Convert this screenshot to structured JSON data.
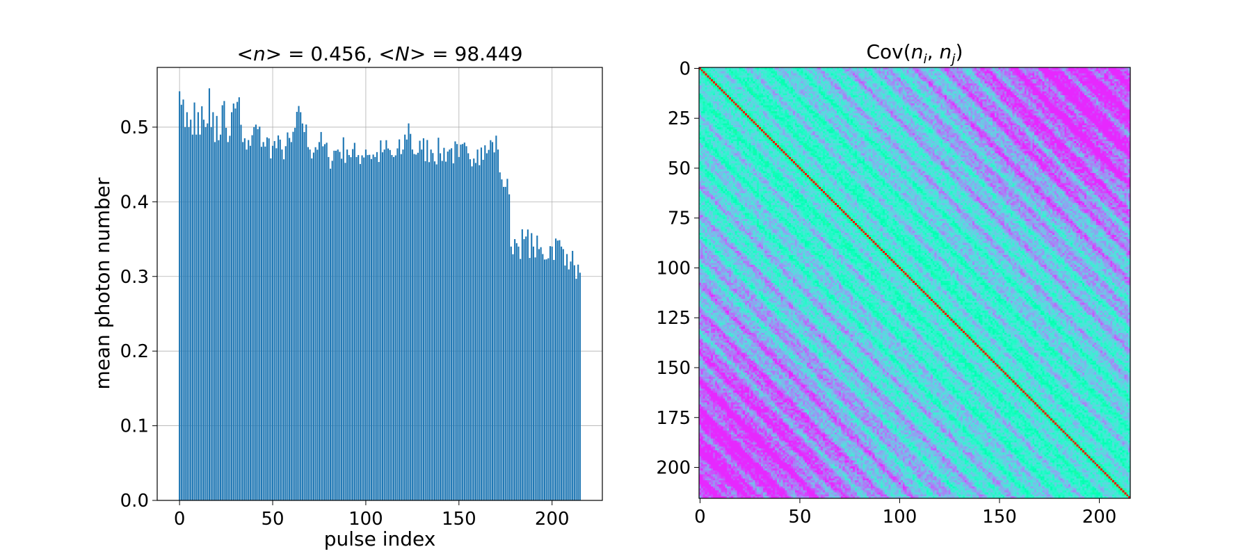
{
  "figure": {
    "background": "#ffffff"
  },
  "chart_data": [
    {
      "type": "bar",
      "title_parts": [
        "<",
        "n",
        "> = 0.456, <",
        "N",
        "> = 98.449"
      ],
      "xlabel": "pulse index",
      "ylabel": "mean photon number",
      "xlim": [
        -12,
        227
      ],
      "ylim": [
        0,
        0.58
      ],
      "xticks": [
        0,
        50,
        100,
        150,
        200
      ],
      "yticks": [
        0.0,
        0.1,
        0.2,
        0.3,
        0.4,
        0.5
      ],
      "ytick_labels": [
        "0.0",
        "0.1",
        "0.2",
        "0.3",
        "0.4",
        "0.5"
      ],
      "grid": true,
      "bar_color": "#1f77b4",
      "bar_width": 0.8,
      "n_bars": 216,
      "anchors": [
        [
          0,
          0.548
        ],
        [
          1,
          0.53
        ],
        [
          2,
          0.537
        ],
        [
          3,
          0.5
        ],
        [
          4,
          0.52
        ],
        [
          5,
          0.5
        ],
        [
          6,
          0.51
        ],
        [
          7,
          0.49
        ],
        [
          8,
          0.533
        ],
        [
          9,
          0.49
        ],
        [
          10,
          0.52
        ],
        [
          11,
          0.49
        ],
        [
          12,
          0.528
        ],
        [
          13,
          0.51
        ],
        [
          14,
          0.5
        ],
        [
          15,
          0.505
        ],
        [
          16,
          0.552
        ],
        [
          17,
          0.5
        ],
        [
          18,
          0.52
        ],
        [
          19,
          0.48
        ],
        [
          20,
          0.515
        ],
        [
          22,
          0.49
        ],
        [
          24,
          0.535
        ],
        [
          26,
          0.48
        ],
        [
          28,
          0.52
        ],
        [
          30,
          0.525
        ],
        [
          32,
          0.54
        ],
        [
          34,
          0.48
        ],
        [
          36,
          0.47
        ],
        [
          38,
          0.475
        ],
        [
          40,
          0.5
        ],
        [
          45,
          0.48
        ],
        [
          50,
          0.475
        ],
        [
          55,
          0.47
        ],
        [
          60,
          0.48
        ],
        [
          65,
          0.52
        ],
        [
          70,
          0.47
        ],
        [
          75,
          0.48
        ],
        [
          80,
          0.46
        ],
        [
          85,
          0.47
        ],
        [
          90,
          0.47
        ],
        [
          95,
          0.46
        ],
        [
          100,
          0.47
        ],
        [
          105,
          0.46
        ],
        [
          110,
          0.47
        ],
        [
          115,
          0.46
        ],
        [
          120,
          0.47
        ],
        [
          123,
          0.505
        ],
        [
          125,
          0.47
        ],
        [
          130,
          0.47
        ],
        [
          135,
          0.47
        ],
        [
          140,
          0.465
        ],
        [
          145,
          0.47
        ],
        [
          150,
          0.46
        ],
        [
          155,
          0.465
        ],
        [
          160,
          0.47
        ],
        [
          165,
          0.465
        ],
        [
          168,
          0.48
        ],
        [
          171,
          0.47
        ],
        [
          173,
          0.43
        ],
        [
          175,
          0.42
        ],
        [
          177,
          0.41
        ],
        [
          178,
          0.34
        ],
        [
          180,
          0.35
        ],
        [
          182,
          0.34
        ],
        [
          185,
          0.35
        ],
        [
          190,
          0.34
        ],
        [
          195,
          0.33
        ],
        [
          200,
          0.34
        ],
        [
          205,
          0.34
        ],
        [
          208,
          0.33
        ],
        [
          210,
          0.32
        ],
        [
          212,
          0.315
        ],
        [
          215,
          0.305
        ]
      ],
      "jitter_amplitude": 0.02
    },
    {
      "type": "heatmap",
      "title_parts": [
        "Cov(",
        "n",
        "i",
        ", ",
        "n",
        "j",
        ")"
      ],
      "size": 216,
      "xticks": [
        0,
        50,
        100,
        150,
        200
      ],
      "yticks": [
        0,
        25,
        50,
        75,
        100,
        125,
        150,
        175,
        200
      ],
      "colormap": "rainbow",
      "diagonal_color": "#ff2a1a",
      "colors": {
        "low": "#7a10f8",
        "mid_low": "#2aa6ee",
        "mid": "#40e0d0",
        "mid_high": "#9bf0a0",
        "high": "#ff2a1a"
      }
    }
  ]
}
